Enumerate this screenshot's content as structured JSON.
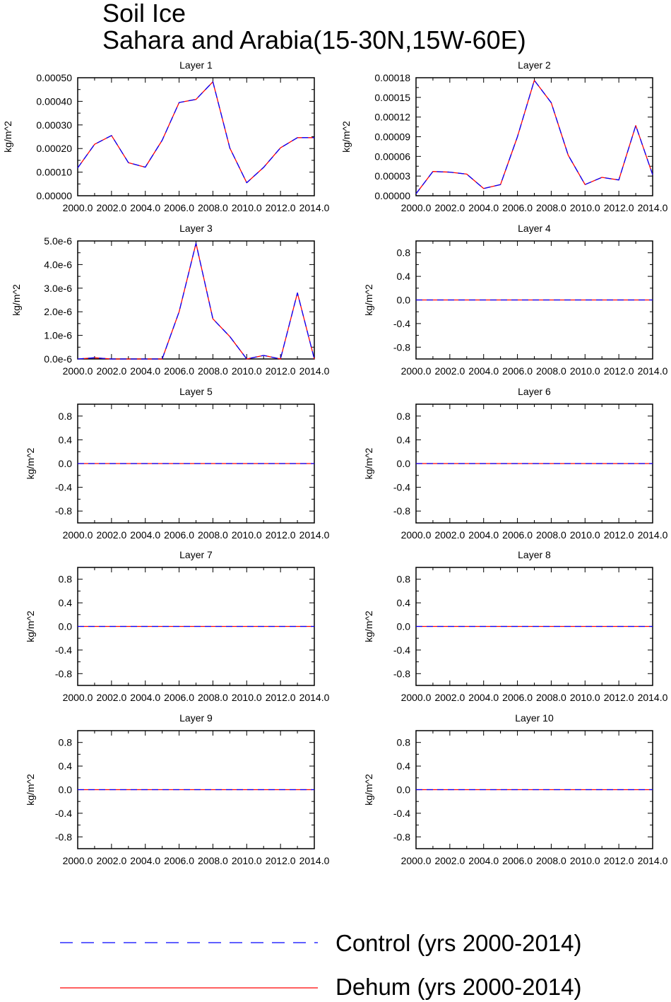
{
  "figure": {
    "title_line1": "Soil Ice",
    "title_line2": "Sahara and Arabia(15-30N,15W-60E)"
  },
  "legend": [
    {
      "label": "Control (yrs 2000-2014)",
      "color": "#0000ff",
      "style": "dashed"
    },
    {
      "label": "Dehum (yrs 2000-2014)",
      "color": "#ff0000",
      "style": "solid"
    }
  ],
  "chart_data": [
    {
      "type": "line",
      "title": "Layer 1",
      "ylabel": "kg/m^2",
      "xlim": [
        2000,
        2014
      ],
      "ylim": [
        0,
        0.0005
      ],
      "xticks": [
        "2000.0",
        "2002.0",
        "2004.0",
        "2006.0",
        "2008.0",
        "2010.0",
        "2012.0",
        "2014.0"
      ],
      "yticks": [
        {
          "v": 0.0,
          "l": "0.00000"
        },
        {
          "v": 0.0001,
          "l": "0.00010"
        },
        {
          "v": 0.0002,
          "l": "0.00020"
        },
        {
          "v": 0.0003,
          "l": "0.00030"
        },
        {
          "v": 0.0004,
          "l": "0.00040"
        },
        {
          "v": 0.0005,
          "l": "0.00050"
        }
      ],
      "x": [
        2000,
        2001,
        2002,
        2003,
        2004,
        2005,
        2006,
        2007,
        2008,
        2009,
        2010,
        2011,
        2012,
        2013,
        2014
      ],
      "series": [
        {
          "name": "Control (yrs 2000-2014)",
          "values": [
            0.000118,
            0.000218,
            0.000255,
            0.00014,
            0.000121,
            0.000235,
            0.000395,
            0.000408,
            0.000483,
            0.000202,
            5.5e-05,
            0.00012,
            0.000203,
            0.000246,
            0.000246
          ]
        },
        {
          "name": "Dehum (yrs 2000-2014)",
          "values": [
            0.000118,
            0.000218,
            0.000255,
            0.00014,
            0.000121,
            0.000235,
            0.000395,
            0.000408,
            0.000483,
            0.000202,
            5.5e-05,
            0.00012,
            0.000203,
            0.000246,
            0.000246
          ]
        }
      ]
    },
    {
      "type": "line",
      "title": "Layer 2",
      "ylabel": "kg/m^2",
      "xlim": [
        2000,
        2014
      ],
      "ylim": [
        0,
        0.00018
      ],
      "xticks": [
        "2000.0",
        "2002.0",
        "2004.0",
        "2006.0",
        "2008.0",
        "2010.0",
        "2012.0",
        "2014.0"
      ],
      "yticks": [
        {
          "v": 0.0,
          "l": "0.00000"
        },
        {
          "v": 3e-05,
          "l": "0.00003"
        },
        {
          "v": 6e-05,
          "l": "0.00006"
        },
        {
          "v": 9e-05,
          "l": "0.00009"
        },
        {
          "v": 0.00012,
          "l": "0.00012"
        },
        {
          "v": 0.00015,
          "l": "0.00015"
        },
        {
          "v": 0.00018,
          "l": "0.00018"
        }
      ],
      "x": [
        2000,
        2001,
        2002,
        2003,
        2004,
        2005,
        2006,
        2007,
        2008,
        2009,
        2010,
        2011,
        2012,
        2013,
        2014
      ],
      "series": [
        {
          "name": "Control (yrs 2000-2014)",
          "values": [
            3e-06,
            3.7e-05,
            3.6e-05,
            3.3e-05,
            1.1e-05,
            1.7e-05,
            9e-05,
            0.000176,
            0.000142,
            6.2e-05,
            1.7e-05,
            2.8e-05,
            2.4e-05,
            0.000107,
            3.2e-05
          ]
        },
        {
          "name": "Dehum (yrs 2000-2014)",
          "values": [
            3e-06,
            3.7e-05,
            3.6e-05,
            3.3e-05,
            1.1e-05,
            1.7e-05,
            9e-05,
            0.000176,
            0.000142,
            6.2e-05,
            1.7e-05,
            2.8e-05,
            2.4e-05,
            0.000107,
            3.2e-05
          ]
        }
      ]
    },
    {
      "type": "line",
      "title": "Layer 3",
      "ylabel": "kg/m^2",
      "xlim": [
        2000,
        2014
      ],
      "ylim": [
        0,
        5e-06
      ],
      "xticks": [
        "2000.0",
        "2002.0",
        "2004.0",
        "2006.0",
        "2008.0",
        "2010.0",
        "2012.0",
        "2014.0"
      ],
      "yticks": [
        {
          "v": 0.0,
          "l": "0.0e-6"
        },
        {
          "v": 1e-06,
          "l": "1.0e-6"
        },
        {
          "v": 2e-06,
          "l": "2.0e-6"
        },
        {
          "v": 3e-06,
          "l": "3.0e-6"
        },
        {
          "v": 4e-06,
          "l": "4.0e-6"
        },
        {
          "v": 5e-06,
          "l": "5.0e-6"
        }
      ],
      "x": [
        2000,
        2001,
        2002,
        2003,
        2004,
        2005,
        2006,
        2007,
        2008,
        2009,
        2010,
        2011,
        2012,
        2013,
        2014
      ],
      "series": [
        {
          "name": "Control (yrs 2000-2014)",
          "values": [
            0.0,
            5e-08,
            0.0,
            0.0,
            0.0,
            0.0,
            2e-06,
            4.9e-06,
            1.7e-06,
            9.5e-07,
            0.0,
            1.5e-07,
            0.0,
            2.8e-06,
            0.0
          ]
        },
        {
          "name": "Dehum (yrs 2000-2014)",
          "values": [
            0.0,
            5e-08,
            0.0,
            0.0,
            0.0,
            0.0,
            2e-06,
            4.9e-06,
            1.7e-06,
            9.5e-07,
            0.0,
            1.5e-07,
            0.0,
            2.8e-06,
            0.0
          ]
        }
      ]
    },
    {
      "type": "line",
      "title": "Layer 4",
      "ylabel": "kg/m^2",
      "xlim": [
        2000,
        2014
      ],
      "ylim": [
        -1,
        1
      ],
      "xticks": [
        "2000.0",
        "2002.0",
        "2004.0",
        "2006.0",
        "2008.0",
        "2010.0",
        "2012.0",
        "2014.0"
      ],
      "yticks": [
        {
          "v": -0.8,
          "l": "-0.8"
        },
        {
          "v": -0.4,
          "l": "-0.4"
        },
        {
          "v": 0.0,
          "l": "0.0"
        },
        {
          "v": 0.4,
          "l": "0.4"
        },
        {
          "v": 0.8,
          "l": "0.8"
        }
      ],
      "x": [
        2000,
        2014
      ],
      "series": [
        {
          "name": "Control (yrs 2000-2014)",
          "values": [
            0,
            0
          ]
        },
        {
          "name": "Dehum (yrs 2000-2014)",
          "values": [
            0,
            0
          ]
        }
      ]
    },
    {
      "type": "line",
      "title": "Layer 5",
      "ylabel": "kg/m^2",
      "xlim": [
        2000,
        2014
      ],
      "ylim": [
        -1,
        1
      ],
      "xticks": [
        "2000.0",
        "2002.0",
        "2004.0",
        "2006.0",
        "2008.0",
        "2010.0",
        "2012.0",
        "2014.0"
      ],
      "yticks": [
        {
          "v": -0.8,
          "l": "-0.8"
        },
        {
          "v": -0.4,
          "l": "-0.4"
        },
        {
          "v": 0.0,
          "l": "0.0"
        },
        {
          "v": 0.4,
          "l": "0.4"
        },
        {
          "v": 0.8,
          "l": "0.8"
        }
      ],
      "x": [
        2000,
        2014
      ],
      "series": [
        {
          "name": "Control (yrs 2000-2014)",
          "values": [
            0,
            0
          ]
        },
        {
          "name": "Dehum (yrs 2000-2014)",
          "values": [
            0,
            0
          ]
        }
      ]
    },
    {
      "type": "line",
      "title": "Layer 6",
      "ylabel": "kg/m^2",
      "xlim": [
        2000,
        2014
      ],
      "ylim": [
        -1,
        1
      ],
      "xticks": [
        "2000.0",
        "2002.0",
        "2004.0",
        "2006.0",
        "2008.0",
        "2010.0",
        "2012.0",
        "2014.0"
      ],
      "yticks": [
        {
          "v": -0.8,
          "l": "-0.8"
        },
        {
          "v": -0.4,
          "l": "-0.4"
        },
        {
          "v": 0.0,
          "l": "0.0"
        },
        {
          "v": 0.4,
          "l": "0.4"
        },
        {
          "v": 0.8,
          "l": "0.8"
        }
      ],
      "x": [
        2000,
        2014
      ],
      "series": [
        {
          "name": "Control (yrs 2000-2014)",
          "values": [
            0,
            0
          ]
        },
        {
          "name": "Dehum (yrs 2000-2014)",
          "values": [
            0,
            0
          ]
        }
      ]
    },
    {
      "type": "line",
      "title": "Layer 7",
      "ylabel": "kg/m^2",
      "xlim": [
        2000,
        2014
      ],
      "ylim": [
        -1,
        1
      ],
      "xticks": [
        "2000.0",
        "2002.0",
        "2004.0",
        "2006.0",
        "2008.0",
        "2010.0",
        "2012.0",
        "2014.0"
      ],
      "yticks": [
        {
          "v": -0.8,
          "l": "-0.8"
        },
        {
          "v": -0.4,
          "l": "-0.4"
        },
        {
          "v": 0.0,
          "l": "0.0"
        },
        {
          "v": 0.4,
          "l": "0.4"
        },
        {
          "v": 0.8,
          "l": "0.8"
        }
      ],
      "x": [
        2000,
        2014
      ],
      "series": [
        {
          "name": "Control (yrs 2000-2014)",
          "values": [
            0,
            0
          ]
        },
        {
          "name": "Dehum (yrs 2000-2014)",
          "values": [
            0,
            0
          ]
        }
      ]
    },
    {
      "type": "line",
      "title": "Layer 8",
      "ylabel": "kg/m^2",
      "xlim": [
        2000,
        2014
      ],
      "ylim": [
        -1,
        1
      ],
      "xticks": [
        "2000.0",
        "2002.0",
        "2004.0",
        "2006.0",
        "2008.0",
        "2010.0",
        "2012.0",
        "2014.0"
      ],
      "yticks": [
        {
          "v": -0.8,
          "l": "-0.8"
        },
        {
          "v": -0.4,
          "l": "-0.4"
        },
        {
          "v": 0.0,
          "l": "0.0"
        },
        {
          "v": 0.4,
          "l": "0.4"
        },
        {
          "v": 0.8,
          "l": "0.8"
        }
      ],
      "x": [
        2000,
        2014
      ],
      "series": [
        {
          "name": "Control (yrs 2000-2014)",
          "values": [
            0,
            0
          ]
        },
        {
          "name": "Dehum (yrs 2000-2014)",
          "values": [
            0,
            0
          ]
        }
      ]
    },
    {
      "type": "line",
      "title": "Layer 9",
      "ylabel": "kg/m^2",
      "xlim": [
        2000,
        2014
      ],
      "ylim": [
        -1,
        1
      ],
      "xticks": [
        "2000.0",
        "2002.0",
        "2004.0",
        "2006.0",
        "2008.0",
        "2010.0",
        "2012.0",
        "2014.0"
      ],
      "yticks": [
        {
          "v": -0.8,
          "l": "-0.8"
        },
        {
          "v": -0.4,
          "l": "-0.4"
        },
        {
          "v": 0.0,
          "l": "0.0"
        },
        {
          "v": 0.4,
          "l": "0.4"
        },
        {
          "v": 0.8,
          "l": "0.8"
        }
      ],
      "x": [
        2000,
        2014
      ],
      "series": [
        {
          "name": "Control (yrs 2000-2014)",
          "values": [
            0,
            0
          ]
        },
        {
          "name": "Dehum (yrs 2000-2014)",
          "values": [
            0,
            0
          ]
        }
      ]
    },
    {
      "type": "line",
      "title": "Layer 10",
      "ylabel": "kg/m^2",
      "xlim": [
        2000,
        2014
      ],
      "ylim": [
        -1,
        1
      ],
      "xticks": [
        "2000.0",
        "2002.0",
        "2004.0",
        "2006.0",
        "2008.0",
        "2010.0",
        "2012.0",
        "2014.0"
      ],
      "yticks": [
        {
          "v": -0.8,
          "l": "-0.8"
        },
        {
          "v": -0.4,
          "l": "-0.4"
        },
        {
          "v": 0.0,
          "l": "0.0"
        },
        {
          "v": 0.4,
          "l": "0.4"
        },
        {
          "v": 0.8,
          "l": "0.8"
        }
      ],
      "x": [
        2000,
        2014
      ],
      "series": [
        {
          "name": "Control (yrs 2000-2014)",
          "values": [
            0,
            0
          ]
        },
        {
          "name": "Dehum (yrs 2000-2014)",
          "values": [
            0,
            0
          ]
        }
      ]
    }
  ]
}
